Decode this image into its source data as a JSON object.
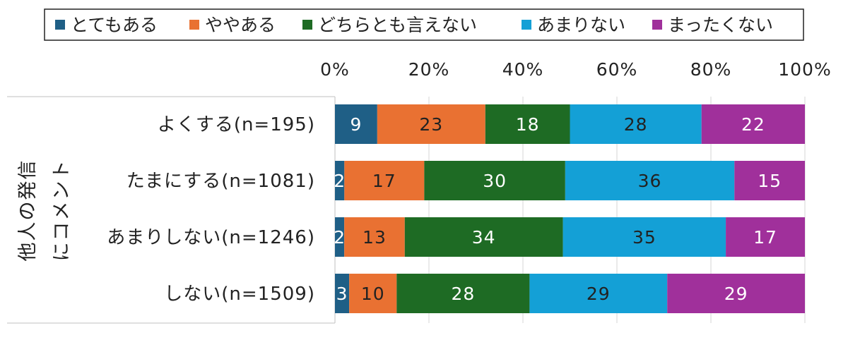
{
  "chart_data": {
    "type": "bar",
    "orientation": "horizontal",
    "stacked": "percent",
    "legend_position": "top",
    "grid": "vertical",
    "xlim": [
      0,
      100
    ],
    "x_ticks": [
      "0%",
      "20%",
      "40%",
      "60%",
      "80%",
      "100%"
    ],
    "group_label": "他人の発信にコメント",
    "categories": [
      "よくする(n=195)",
      "たまにする(n=1081)",
      "あまりしない(n=1246)",
      "しない(n=1509)"
    ],
    "series": [
      {
        "name": "とてもある",
        "color": "#1f5f86",
        "values": [
          9,
          2,
          2,
          3
        ]
      },
      {
        "name": "ややある",
        "color": "#e97132",
        "values": [
          23,
          17,
          13,
          10
        ]
      },
      {
        "name": "どちらとも言えない",
        "color": "#1e6b24",
        "values": [
          18,
          30,
          34,
          28
        ]
      },
      {
        "name": "あまりない",
        "color": "#14a0d6",
        "values": [
          28,
          36,
          35,
          29
        ]
      },
      {
        "name": "まったくない",
        "color": "#a0309b",
        "values": [
          22,
          15,
          17,
          29
        ]
      }
    ]
  }
}
